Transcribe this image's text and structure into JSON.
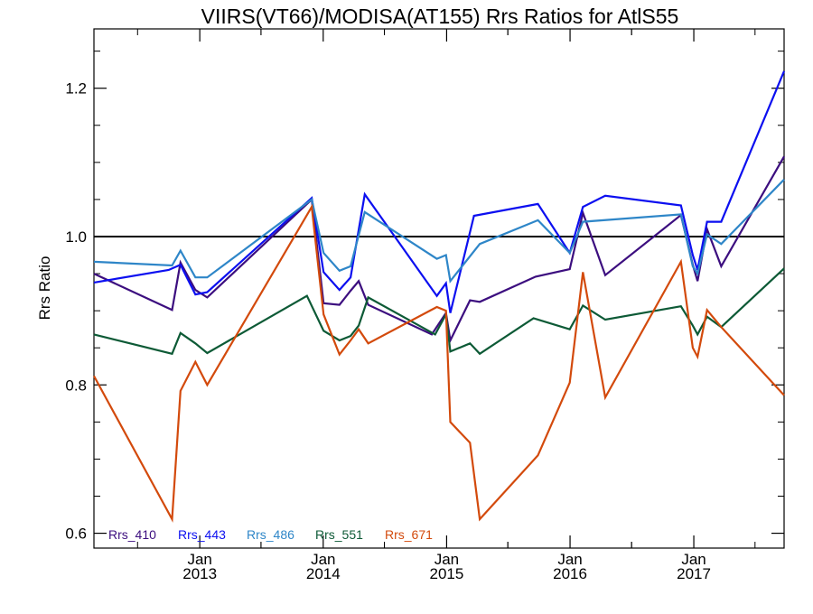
{
  "chart_data": {
    "type": "line",
    "title": "VIIRS(VT66)/MODISA(AT155)  Rrs Ratios for AtlS55",
    "xlabel": "",
    "ylabel": "Rrs Ratio",
    "xlim": [
      "2012-02-23",
      "2017-09-25"
    ],
    "ylim": [
      0.58,
      1.28
    ],
    "x_tick_labels": [
      {
        "x": "2013-01-01",
        "month": "Jan",
        "year": "2013"
      },
      {
        "x": "2014-01-01",
        "month": "Jan",
        "year": "2014"
      },
      {
        "x": "2015-01-01",
        "month": "Jan",
        "year": "2015"
      },
      {
        "x": "2016-01-01",
        "month": "Jan",
        "year": "2016"
      },
      {
        "x": "2017-01-01",
        "month": "Jan",
        "year": "2017"
      }
    ],
    "y_ticks": [
      0.6,
      0.8,
      1.0,
      1.2
    ],
    "y_tick_labels": [
      "0.6",
      "0.8",
      "1.0",
      "1.2"
    ],
    "reference_line": 1.0,
    "grid": false,
    "legend_position": "bottom-left",
    "series": [
      {
        "name": "Rrs_410",
        "color": "#3c0e7f",
        "points": [
          {
            "x": "2012-02-23",
            "y": 0.95
          },
          {
            "x": "2012-10-11",
            "y": 0.901
          },
          {
            "x": "2012-11-05",
            "y": 0.965
          },
          {
            "x": "2012-12-19",
            "y": 0.928
          },
          {
            "x": "2013-01-23",
            "y": 0.918
          },
          {
            "x": "2013-11-28",
            "y": 1.05
          },
          {
            "x": "2014-01-02",
            "y": 0.91
          },
          {
            "x": "2014-02-18",
            "y": 0.908
          },
          {
            "x": "2014-03-23",
            "y": 0.927
          },
          {
            "x": "2014-04-16",
            "y": 0.94
          },
          {
            "x": "2014-05-14",
            "y": 0.908
          },
          {
            "x": "2014-11-18",
            "y": 0.868
          },
          {
            "x": "2014-12-30",
            "y": 0.897
          },
          {
            "x": "2015-01-12",
            "y": 0.86
          },
          {
            "x": "2015-03-11",
            "y": 0.914
          },
          {
            "x": "2015-04-09",
            "y": 0.912
          },
          {
            "x": "2015-09-21",
            "y": 0.946
          },
          {
            "x": "2015-12-31",
            "y": 0.956
          },
          {
            "x": "2016-02-08",
            "y": 1.032
          },
          {
            "x": "2016-04-14",
            "y": 0.948
          },
          {
            "x": "2016-11-24",
            "y": 1.029
          },
          {
            "x": "2016-12-29",
            "y": 0.962
          },
          {
            "x": "2017-01-12",
            "y": 0.94
          },
          {
            "x": "2017-02-09",
            "y": 1.01
          },
          {
            "x": "2017-03-23",
            "y": 0.96
          },
          {
            "x": "2017-09-25",
            "y": 1.108
          }
        ]
      },
      {
        "name": "Rrs_443",
        "color": "#0c0ff0",
        "points": [
          {
            "x": "2012-02-23",
            "y": 0.938
          },
          {
            "x": "2012-10-01",
            "y": 0.955
          },
          {
            "x": "2012-11-05",
            "y": 0.962
          },
          {
            "x": "2012-12-19",
            "y": 0.922
          },
          {
            "x": "2013-01-23",
            "y": 0.925
          },
          {
            "x": "2013-11-28",
            "y": 1.052
          },
          {
            "x": "2014-01-02",
            "y": 0.952
          },
          {
            "x": "2014-02-18",
            "y": 0.928
          },
          {
            "x": "2014-03-23",
            "y": 0.945
          },
          {
            "x": "2014-05-04",
            "y": 1.057
          },
          {
            "x": "2014-12-03",
            "y": 0.92
          },
          {
            "x": "2014-12-30",
            "y": 0.937
          },
          {
            "x": "2015-01-12",
            "y": 0.897
          },
          {
            "x": "2015-03-23",
            "y": 1.028
          },
          {
            "x": "2015-09-28",
            "y": 1.044
          },
          {
            "x": "2015-12-31",
            "y": 0.978
          },
          {
            "x": "2016-02-08",
            "y": 1.04
          },
          {
            "x": "2016-04-14",
            "y": 1.055
          },
          {
            "x": "2016-11-24",
            "y": 1.042
          },
          {
            "x": "2016-12-29",
            "y": 0.975
          },
          {
            "x": "2017-01-12",
            "y": 0.955
          },
          {
            "x": "2017-02-09",
            "y": 1.02
          },
          {
            "x": "2017-03-23",
            "y": 1.02
          },
          {
            "x": "2017-09-25",
            "y": 1.223
          }
        ]
      },
      {
        "name": "Rrs_486",
        "color": "#2e86c8",
        "points": [
          {
            "x": "2012-02-23",
            "y": 0.966
          },
          {
            "x": "2012-10-11",
            "y": 0.961
          },
          {
            "x": "2012-11-05",
            "y": 0.981
          },
          {
            "x": "2012-12-19",
            "y": 0.945
          },
          {
            "x": "2013-01-23",
            "y": 0.945
          },
          {
            "x": "2013-11-28",
            "y": 1.05
          },
          {
            "x": "2014-01-02",
            "y": 0.978
          },
          {
            "x": "2014-02-18",
            "y": 0.954
          },
          {
            "x": "2014-03-23",
            "y": 0.96
          },
          {
            "x": "2014-05-04",
            "y": 1.033
          },
          {
            "x": "2014-12-03",
            "y": 0.97
          },
          {
            "x": "2014-12-30",
            "y": 0.975
          },
          {
            "x": "2015-01-12",
            "y": 0.94
          },
          {
            "x": "2015-04-09",
            "y": 0.99
          },
          {
            "x": "2015-09-28",
            "y": 1.022
          },
          {
            "x": "2015-12-31",
            "y": 0.978
          },
          {
            "x": "2016-02-08",
            "y": 1.02
          },
          {
            "x": "2016-11-24",
            "y": 1.03
          },
          {
            "x": "2016-12-29",
            "y": 0.96
          },
          {
            "x": "2017-01-12",
            "y": 0.95
          },
          {
            "x": "2017-02-09",
            "y": 1.003
          },
          {
            "x": "2017-03-23",
            "y": 0.99
          },
          {
            "x": "2017-09-25",
            "y": 1.077
          }
        ]
      },
      {
        "name": "Rrs_551",
        "color": "#0d5a36",
        "points": [
          {
            "x": "2012-02-23",
            "y": 0.868
          },
          {
            "x": "2012-10-11",
            "y": 0.842
          },
          {
            "x": "2012-11-05",
            "y": 0.87
          },
          {
            "x": "2012-12-19",
            "y": 0.856
          },
          {
            "x": "2013-01-23",
            "y": 0.843
          },
          {
            "x": "2013-11-14",
            "y": 0.92
          },
          {
            "x": "2014-01-02",
            "y": 0.873
          },
          {
            "x": "2014-02-18",
            "y": 0.86
          },
          {
            "x": "2014-03-23",
            "y": 0.866
          },
          {
            "x": "2014-04-16",
            "y": 0.88
          },
          {
            "x": "2014-05-14",
            "y": 0.918
          },
          {
            "x": "2014-11-28",
            "y": 0.868
          },
          {
            "x": "2014-12-30",
            "y": 0.895
          },
          {
            "x": "2015-01-12",
            "y": 0.845
          },
          {
            "x": "2015-03-11",
            "y": 0.856
          },
          {
            "x": "2015-04-09",
            "y": 0.842
          },
          {
            "x": "2015-09-15",
            "y": 0.89
          },
          {
            "x": "2015-12-31",
            "y": 0.875
          },
          {
            "x": "2016-02-08",
            "y": 0.907
          },
          {
            "x": "2016-04-14",
            "y": 0.888
          },
          {
            "x": "2016-11-24",
            "y": 0.906
          },
          {
            "x": "2016-12-29",
            "y": 0.88
          },
          {
            "x": "2017-01-12",
            "y": 0.868
          },
          {
            "x": "2017-02-09",
            "y": 0.892
          },
          {
            "x": "2017-03-23",
            "y": 0.878
          },
          {
            "x": "2017-09-25",
            "y": 0.957
          }
        ]
      },
      {
        "name": "Rrs_671",
        "color": "#d34a0c",
        "points": [
          {
            "x": "2012-02-23",
            "y": 0.812
          },
          {
            "x": "2012-10-11",
            "y": 0.619
          },
          {
            "x": "2012-11-05",
            "y": 0.792
          },
          {
            "x": "2012-12-19",
            "y": 0.831
          },
          {
            "x": "2013-01-23",
            "y": 0.8
          },
          {
            "x": "2013-11-28",
            "y": 1.04
          },
          {
            "x": "2014-01-02",
            "y": 0.895
          },
          {
            "x": "2014-02-18",
            "y": 0.841
          },
          {
            "x": "2014-03-23",
            "y": 0.86
          },
          {
            "x": "2014-04-16",
            "y": 0.875
          },
          {
            "x": "2014-05-14",
            "y": 0.856
          },
          {
            "x": "2014-12-03",
            "y": 0.905
          },
          {
            "x": "2014-12-30",
            "y": 0.9
          },
          {
            "x": "2015-01-12",
            "y": 0.75
          },
          {
            "x": "2015-03-11",
            "y": 0.722
          },
          {
            "x": "2015-04-09",
            "y": 0.619
          },
          {
            "x": "2015-09-28",
            "y": 0.705
          },
          {
            "x": "2015-12-31",
            "y": 0.803
          },
          {
            "x": "2016-02-08",
            "y": 0.952
          },
          {
            "x": "2016-04-14",
            "y": 0.783
          },
          {
            "x": "2016-11-24",
            "y": 0.966
          },
          {
            "x": "2016-12-29",
            "y": 0.85
          },
          {
            "x": "2017-01-12",
            "y": 0.838
          },
          {
            "x": "2017-02-09",
            "y": 0.901
          },
          {
            "x": "2017-03-23",
            "y": 0.878
          },
          {
            "x": "2017-09-25",
            "y": 0.786
          }
        ]
      }
    ]
  }
}
